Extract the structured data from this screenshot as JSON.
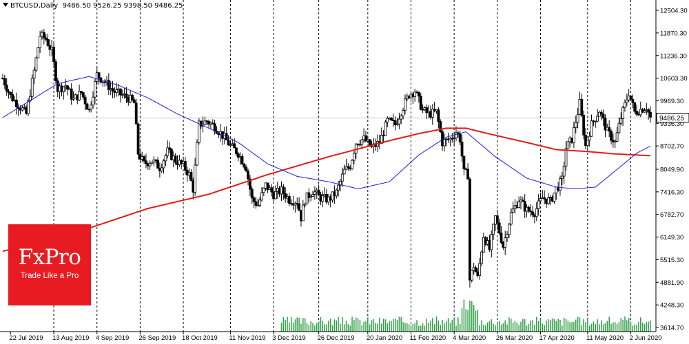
{
  "header": {
    "symbol": "BTCUSD,Daily",
    "ohlc": "9486.50 9526.25 9398.50 9486.25"
  },
  "logo": {
    "brand": "FxPro",
    "tagline": "Trade Like a Pro",
    "color": "#e81b23"
  },
  "colors": {
    "up_candle": "#ffffff",
    "down_candle": "#000000",
    "ma_fast": "#1a1aee",
    "ma_slow": "#e21a1a",
    "volume": "#2f9e44",
    "grid": "#000000",
    "price_line": "#c0c0c0",
    "current_badge": "#ffffff"
  },
  "chart_data": {
    "type": "candlestick",
    "title": "BTCUSD,Daily",
    "y_ticks": [
      "12504.30",
      "11870.30",
      "11236.30",
      "10603.30",
      "9969.30",
      "9336.30",
      "8702.70",
      "8049.90",
      "7416.30",
      "6782.70",
      "6149.30",
      "5515.30",
      "4881.90",
      "4248.30",
      "3614.70"
    ],
    "y_range": [
      3614.7,
      12504.3
    ],
    "current_price": "9486.25",
    "x_ticks": [
      "22 Jul 2019",
      "13 Aug 2019",
      "4 Sep 2019",
      "26 Sep 2019",
      "18 Oct 2019",
      "11 Nov 2019",
      "3 Dec 2019",
      "26 Dec 2019",
      "20 Jan 2020",
      "11 Feb 2020",
      "4 Mar 2020",
      "26 Mar 2020",
      "17 Apr 2020",
      "11 May 2020",
      "2 Jun 2020"
    ],
    "x_range": [
      "2019-07-18",
      "2020-06-12"
    ],
    "close_path": [
      [
        "2019-07-18",
        10600
      ],
      [
        "2019-07-22",
        10100
      ],
      [
        "2019-07-26",
        9850
      ],
      [
        "2019-07-30",
        9600
      ],
      [
        "2019-08-03",
        10800
      ],
      [
        "2019-08-06",
        11800
      ],
      [
        "2019-08-09",
        11700
      ],
      [
        "2019-08-12",
        11350
      ],
      [
        "2019-08-15",
        10300
      ],
      [
        "2019-08-19",
        10400
      ],
      [
        "2019-08-23",
        10000
      ],
      [
        "2019-08-27",
        10200
      ],
      [
        "2019-08-31",
        9700
      ],
      [
        "2019-09-04",
        10700
      ],
      [
        "2019-09-08",
        10500
      ],
      [
        "2019-09-12",
        10250
      ],
      [
        "2019-09-16",
        10150
      ],
      [
        "2019-09-20",
        10050
      ],
      [
        "2019-09-23",
        9900
      ],
      [
        "2019-09-25",
        8500
      ],
      [
        "2019-09-28",
        8200
      ],
      [
        "2019-10-02",
        8300
      ],
      [
        "2019-10-06",
        8100
      ],
      [
        "2019-10-10",
        8550
      ],
      [
        "2019-10-14",
        8300
      ],
      [
        "2019-10-18",
        8150
      ],
      [
        "2019-10-21",
        7900
      ],
      [
        "2019-10-23",
        7500
      ],
      [
        "2019-10-26",
        9300
      ],
      [
        "2019-10-30",
        9400
      ],
      [
        "2019-11-03",
        9250
      ],
      [
        "2019-11-07",
        9000
      ],
      [
        "2019-11-11",
        8700
      ],
      [
        "2019-11-15",
        8500
      ],
      [
        "2019-11-19",
        8100
      ],
      [
        "2019-11-22",
        7200
      ],
      [
        "2019-11-25",
        7050
      ],
      [
        "2019-11-29",
        7600
      ],
      [
        "2019-12-03",
        7350
      ],
      [
        "2019-12-07",
        7450
      ],
      [
        "2019-12-11",
        7200
      ],
      [
        "2019-12-15",
        7150
      ],
      [
        "2019-12-17",
        6700
      ],
      [
        "2019-12-19",
        7200
      ],
      [
        "2019-12-23",
        7450
      ],
      [
        "2019-12-27",
        7250
      ],
      [
        "2019-12-31",
        7200
      ],
      [
        "2020-01-04",
        7400
      ],
      [
        "2020-01-08",
        8000
      ],
      [
        "2020-01-11",
        8150
      ],
      [
        "2020-01-14",
        8800
      ],
      [
        "2020-01-18",
        8900
      ],
      [
        "2020-01-22",
        8650
      ],
      [
        "2020-01-26",
        8800
      ],
      [
        "2020-01-30",
        9400
      ],
      [
        "2020-02-03",
        9300
      ],
      [
        "2020-02-07",
        9800
      ],
      [
        "2020-02-10",
        10150
      ],
      [
        "2020-02-13",
        10250
      ],
      [
        "2020-02-17",
        9700
      ],
      [
        "2020-02-20",
        9600
      ],
      [
        "2020-02-24",
        9650
      ],
      [
        "2020-02-27",
        8800
      ],
      [
        "2020-03-02",
        8900
      ],
      [
        "2020-03-05",
        9100
      ],
      [
        "2020-03-07",
        8900
      ],
      [
        "2020-03-09",
        7950
      ],
      [
        "2020-03-11",
        7900
      ],
      [
        "2020-03-12",
        4950
      ],
      [
        "2020-03-14",
        5350
      ],
      [
        "2020-03-16",
        5000
      ],
      [
        "2020-03-19",
        6200
      ],
      [
        "2020-03-22",
        5800
      ],
      [
        "2020-03-25",
        6700
      ],
      [
        "2020-03-29",
        5900
      ],
      [
        "2020-04-02",
        6800
      ],
      [
        "2020-04-06",
        7200
      ],
      [
        "2020-04-10",
        6900
      ],
      [
        "2020-04-14",
        6850
      ],
      [
        "2020-04-18",
        7250
      ],
      [
        "2020-04-22",
        7150
      ],
      [
        "2020-04-25",
        7500
      ],
      [
        "2020-04-28",
        7750
      ],
      [
        "2020-04-30",
        8650
      ],
      [
        "2020-05-03",
        8900
      ],
      [
        "2020-05-07",
        9900
      ],
      [
        "2020-05-10",
        8700
      ],
      [
        "2020-05-13",
        9300
      ],
      [
        "2020-05-17",
        9700
      ],
      [
        "2020-05-21",
        9100
      ],
      [
        "2020-05-25",
        8800
      ],
      [
        "2020-05-28",
        9500
      ],
      [
        "2020-06-01",
        10200
      ],
      [
        "2020-06-04",
        9650
      ],
      [
        "2020-06-08",
        9750
      ],
      [
        "2020-06-10",
        9800
      ],
      [
        "2020-06-12",
        9486
      ]
    ],
    "ma_fast": [
      [
        "2019-07-18",
        9500
      ],
      [
        "2019-08-15",
        10450
      ],
      [
        "2019-08-31",
        10650
      ],
      [
        "2019-09-15",
        10400
      ],
      [
        "2019-09-30",
        10050
      ],
      [
        "2019-10-15",
        9600
      ],
      [
        "2019-10-31",
        9200
      ],
      [
        "2019-11-15",
        8800
      ],
      [
        "2019-11-30",
        8200
      ],
      [
        "2019-12-15",
        7850
      ],
      [
        "2019-12-31",
        7700
      ],
      [
        "2020-01-15",
        7500
      ],
      [
        "2020-01-31",
        7700
      ],
      [
        "2020-02-15",
        8450
      ],
      [
        "2020-02-29",
        8950
      ],
      [
        "2020-03-10",
        9100
      ],
      [
        "2020-03-25",
        8400
      ],
      [
        "2020-04-10",
        7800
      ],
      [
        "2020-04-25",
        7550
      ],
      [
        "2020-05-05",
        7500
      ],
      [
        "2020-05-15",
        7550
      ],
      [
        "2020-05-25",
        8000
      ],
      [
        "2020-06-05",
        8500
      ],
      [
        "2020-06-12",
        8700
      ]
    ],
    "ma_slow": [
      [
        "2019-07-18",
        5750
      ],
      [
        "2019-08-15",
        6150
      ],
      [
        "2019-08-31",
        6400
      ],
      [
        "2019-09-30",
        6950
      ],
      [
        "2019-10-31",
        7350
      ],
      [
        "2019-11-30",
        7900
      ],
      [
        "2019-12-31",
        8400
      ],
      [
        "2020-01-31",
        8850
      ],
      [
        "2020-02-15",
        9050
      ],
      [
        "2020-02-29",
        9200
      ],
      [
        "2020-03-10",
        9200
      ],
      [
        "2020-03-25",
        9000
      ],
      [
        "2020-04-10",
        8800
      ],
      [
        "2020-04-25",
        8600
      ],
      [
        "2020-05-10",
        8550
      ],
      [
        "2020-05-25",
        8480
      ],
      [
        "2020-06-12",
        8430
      ]
    ],
    "volume_start": "2019-12-07",
    "volume_scale_max": 1.0
  }
}
